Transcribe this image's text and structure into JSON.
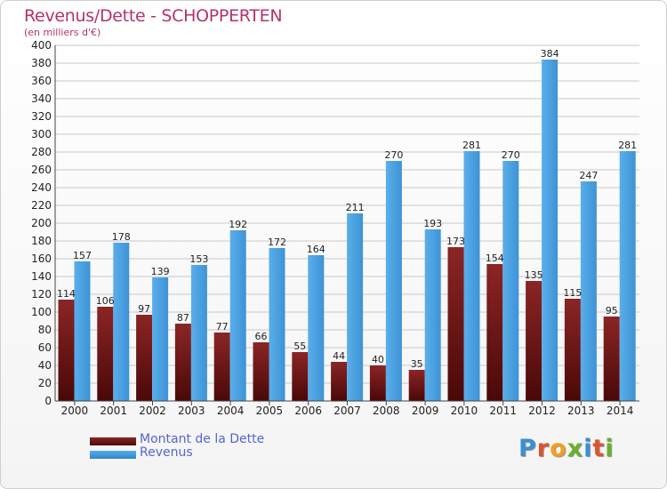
{
  "page": {
    "title": "Revenus/Dette - SCHOPPERTEN",
    "subtitle": "(en milliers d'€)",
    "logo": "Proxiti"
  },
  "colors": {
    "debt": "#8b2525",
    "debt_dark": "#4a0808",
    "revenue": "#5aaeea",
    "revenue_dark": "#2f86cc",
    "grid": "#c8c8c8",
    "title": "#b5336a",
    "legend_text": "#5566cc"
  },
  "legend": [
    {
      "label": "Montant de la Dette"
    },
    {
      "label": "Revenus"
    }
  ],
  "chart_data": {
    "type": "bar",
    "title": "Revenus/Dette - SCHOPPERTEN",
    "subtitle": "(en milliers d'€)",
    "categories": [
      "2000",
      "2001",
      "2002",
      "2003",
      "2004",
      "2005",
      "2006",
      "2007",
      "2008",
      "2009",
      "2010",
      "2011",
      "2012",
      "2013",
      "2014"
    ],
    "series": [
      {
        "name": "Montant de la Dette",
        "values": [
          114,
          106,
          97,
          87,
          77,
          66,
          55,
          44,
          40,
          35,
          173,
          154,
          135,
          115,
          95
        ]
      },
      {
        "name": "Revenus",
        "values": [
          157,
          178,
          139,
          153,
          192,
          172,
          164,
          211,
          270,
          193,
          281,
          270,
          384,
          247,
          281
        ]
      }
    ],
    "ylim": [
      0,
      400
    ],
    "yticks": [
      0,
      20,
      40,
      60,
      80,
      100,
      120,
      140,
      160,
      180,
      200,
      220,
      240,
      260,
      280,
      300,
      320,
      340,
      360,
      380,
      400
    ],
    "grid": true,
    "legend_position": "bottom-left"
  }
}
